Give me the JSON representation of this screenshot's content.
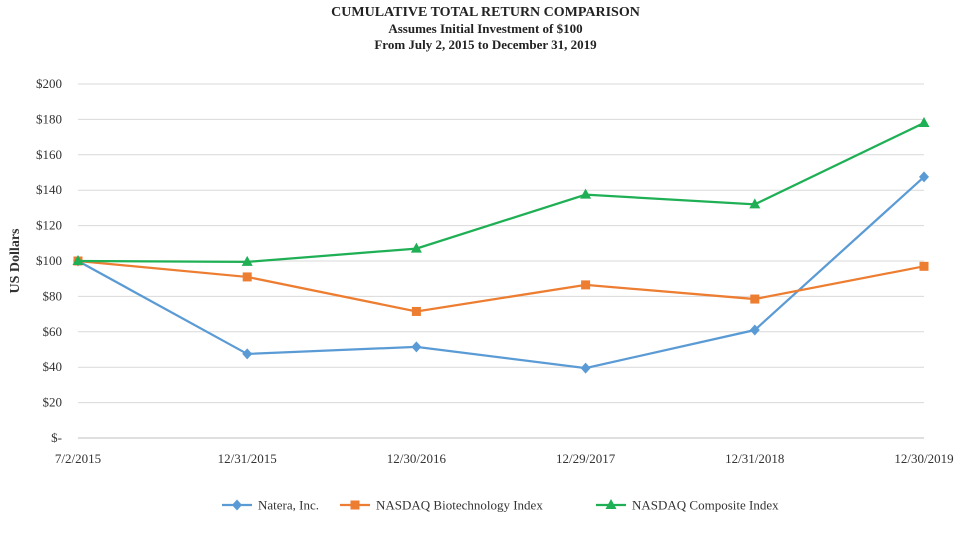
{
  "chart_data": {
    "type": "line",
    "title": "CUMULATIVE TOTAL RETURN COMPARISON",
    "subtitle_1": "Assumes Initial Investment of $100",
    "subtitle_2": "From July 2, 2015 to December 31, 2019",
    "ylabel": "US Dollars",
    "ylim": [
      0,
      200
    ],
    "ytick_values": [
      0,
      20,
      40,
      60,
      80,
      100,
      120,
      140,
      160,
      180,
      200
    ],
    "ytick_labels": [
      "$-",
      "$20",
      "$40",
      "$60",
      "$80",
      "$100",
      "$120",
      "$140",
      "$160",
      "$180",
      "$200"
    ],
    "categories": [
      "7/2/2015",
      "12/31/2015",
      "12/30/2016",
      "12/29/2017",
      "12/31/2018",
      "12/30/2019"
    ],
    "grid": true,
    "legend_position": "bottom",
    "series": [
      {
        "name": "Natera, Inc.",
        "color": "#5B9BD5",
        "marker": "diamond",
        "values": [
          100,
          47.5,
          51.5,
          39.5,
          61,
          147.5
        ]
      },
      {
        "name": "NASDAQ Biotechnology Index",
        "color": "#ED7D31",
        "marker": "square",
        "values": [
          100,
          91,
          71.5,
          86.5,
          78.5,
          97
        ]
      },
      {
        "name": "NASDAQ Composite Index",
        "color": "#1FAF55",
        "marker": "triangle",
        "values": [
          100,
          99.5,
          107,
          137.5,
          132,
          178
        ]
      }
    ]
  }
}
